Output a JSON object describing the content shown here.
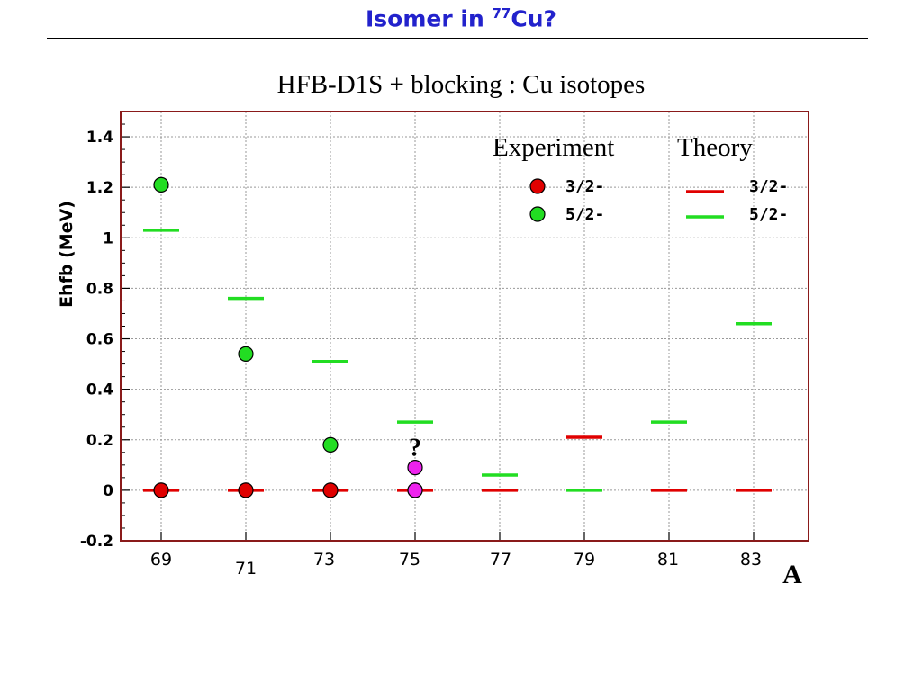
{
  "slide": {
    "title_prefix": "Isomer in ",
    "title_superscript": "77",
    "title_suffix": "Cu?"
  },
  "chart_data": {
    "type": "scatter",
    "title": "HFB-D1S + blocking : Cu isotopes",
    "ylabel": "Ehfb (MeV)",
    "xlabel": "A",
    "ylim": [
      -0.2,
      1.5
    ],
    "yticks": [
      -0.2,
      0,
      0.2,
      0.4,
      0.6,
      0.8,
      1,
      1.2,
      1.4
    ],
    "ytick_labels": [
      "-0.2",
      "0",
      "0.2",
      "0.4",
      "0.6",
      "0.8",
      "1",
      "1.2",
      "1.4"
    ],
    "categories": [
      "69",
      "71",
      "73",
      "75",
      "77",
      "79",
      "81",
      "83"
    ],
    "grid": true,
    "legend": {
      "experiment_header": "Experiment",
      "theory_header": "Theory",
      "entries": [
        {
          "label": "3/2-",
          "color": "#e00000"
        },
        {
          "label": "5/2-",
          "color": "#22dd22"
        }
      ]
    },
    "experiment": [
      {
        "name": "3/2-",
        "color": "#e00000",
        "points": [
          {
            "x": "69",
            "y": 0
          },
          {
            "x": "71",
            "y": 0
          },
          {
            "x": "73",
            "y": 0
          },
          {
            "x": "75",
            "y": 0
          }
        ]
      },
      {
        "name": "5/2-",
        "color": "#22dd22",
        "points": [
          {
            "x": "69",
            "y": 1.21
          },
          {
            "x": "71",
            "y": 0.54
          },
          {
            "x": "73",
            "y": 0.18
          }
        ]
      },
      {
        "name": "",
        "color": "#ee22ee",
        "points": [
          {
            "x": "75",
            "y": 0
          },
          {
            "x": "75",
            "y": 0.09
          }
        ]
      }
    ],
    "theory": [
      {
        "name": "3/2-",
        "color": "#e00000",
        "values": [
          {
            "x": "69",
            "y": 0
          },
          {
            "x": "71",
            "y": 0
          },
          {
            "x": "73",
            "y": 0
          },
          {
            "x": "75",
            "y": 0
          },
          {
            "x": "77",
            "y": 0
          },
          {
            "x": "79",
            "y": 0.21
          },
          {
            "x": "81",
            "y": 0
          },
          {
            "x": "83",
            "y": 0
          }
        ]
      },
      {
        "name": "5/2-",
        "color": "#22dd22",
        "values": [
          {
            "x": "69",
            "y": 1.03
          },
          {
            "x": "71",
            "y": 0.76
          },
          {
            "x": "73",
            "y": 0.51
          },
          {
            "x": "75",
            "y": 0.27
          },
          {
            "x": "77",
            "y": 0.06
          },
          {
            "x": "79",
            "y": 0
          },
          {
            "x": "81",
            "y": 0.27
          },
          {
            "x": "83",
            "y": 0.66
          }
        ]
      }
    ],
    "annotations": [
      {
        "text": "?",
        "x": "75",
        "y": 0.18
      }
    ]
  }
}
